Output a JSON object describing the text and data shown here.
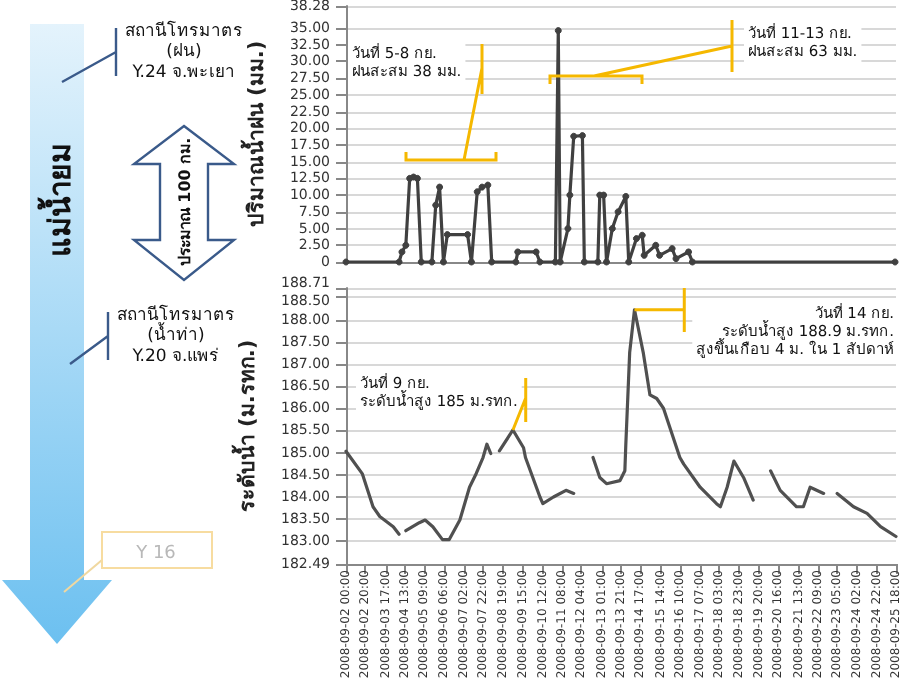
{
  "chart_data": [
    {
      "type": "other",
      "annotations": [
        "แม่น้ำยม",
        "สถานีโทรมาตร\n(ฝน)\nY.24 จ.พะเยา",
        "ประมาณ 100 กม.",
        "สถานีโทรมาตร\n(น้ำท่า)\nY.20 จ.แพร่",
        "Y 16"
      ]
    },
    {
      "type": "line",
      "ylabel": "ปริมาณน้ำฝน (มม.)",
      "tick_labels": "y",
      "grid": "y",
      "marker": "circle",
      "xlim": [
        "2008-09-02T00:00",
        "2008-09-25T18:00"
      ],
      "ylim": [
        0,
        38.28
      ],
      "yticks": [
        0,
        {
          "value": 2.5,
          "label": "2.50"
        },
        {
          "value": 5,
          "label": "5.00"
        },
        {
          "value": 7.5,
          "label": "7.50"
        },
        {
          "value": 10,
          "label": "10.00"
        },
        {
          "value": 12.5,
          "label": "12.50"
        },
        {
          "value": 15,
          "label": "15.00"
        },
        {
          "value": 17.5,
          "label": "17.50"
        },
        {
          "value": 20,
          "label": "20.00"
        },
        {
          "value": 22.5,
          "label": "22.50"
        },
        {
          "value": 25,
          "label": "25.00"
        },
        {
          "value": 27.5,
          "label": "27.50"
        },
        {
          "value": 30,
          "label": "30.00"
        },
        {
          "value": 32.5,
          "label": "32.50"
        },
        {
          "value": 35,
          "label": "35.00"
        },
        {
          "value": 38.28,
          "label": "38.28"
        }
      ],
      "x": [
        "2008-09-02T00:00",
        "2008-09-04T07:00",
        "2008-09-04T10:00",
        "2008-09-04T14:00",
        "2008-09-04T18:00",
        "2008-09-04T22:00",
        "2008-09-05T02:00",
        "2008-09-05T06:00",
        "2008-09-05T17:00",
        "2008-09-05T21:00",
        "2008-09-06T01:00",
        "2008-09-06T05:00",
        "2008-09-06T09:00",
        "2008-09-07T06:00",
        "2008-09-07T10:00",
        "2008-09-07T16:00",
        "2008-09-07T21:00",
        "2008-09-08T03:00",
        "2008-09-08T07:00",
        "2008-09-09T08:00",
        "2008-09-09T10:00",
        "2008-09-10T05:00",
        "2008-09-10T09:00",
        "2008-09-11T01:00",
        "2008-09-11T04:00",
        "2008-09-11T06:00",
        "2008-09-11T14:00",
        "2008-09-11T16:00",
        "2008-09-11T20:00",
        "2008-09-12T05:00",
        "2008-09-12T07:00",
        "2008-09-12T21:00",
        "2008-09-12T23:00",
        "2008-09-13T03:00",
        "2008-09-13T06:00",
        "2008-09-13T12:00",
        "2008-09-13T18:00",
        "2008-09-14T02:00",
        "2008-09-14T05:00",
        "2008-09-14T13:00",
        "2008-09-14T19:00",
        "2008-09-14T21:00",
        "2008-09-15T09:00",
        "2008-09-15T13:00",
        "2008-09-16T02:00",
        "2008-09-16T06:00",
        "2008-09-16T19:00",
        "2008-09-16T23:00",
        "2008-09-25T17:00"
      ],
      "series": [
        {
          "color": "#404040",
          "values": [
            0,
            0,
            1.5,
            2.5,
            12.5,
            12.7,
            12.5,
            0,
            0,
            8.5,
            11.2,
            0,
            4.1,
            4.1,
            0,
            10.5,
            11.2,
            11.5,
            0,
            0,
            1.5,
            1.5,
            0,
            0,
            34.6,
            0,
            5,
            10,
            18.8,
            18.9,
            0,
            0,
            10,
            10,
            0,
            5,
            7.5,
            9.8,
            0,
            3.5,
            4,
            1,
            2.5,
            1,
            2,
            0.5,
            1.5,
            0,
            0
          ]
        }
      ],
      "annotations": [
        "วันที่ 5-8 กย.\nฝนสะสม 38 มม.",
        "วันที่ 11-13 กย.\nฝนสะสม 63 มม."
      ]
    },
    {
      "type": "line",
      "ylabel": "ระดับน้ำ (ม.รทก.)",
      "grid": "y",
      "marker": "none",
      "xlim": [
        "2008-09-02T00:00",
        "2008-09-25T18:00"
      ],
      "xticks": [
        {
          "value": "2008-09-02T00:00",
          "label": "2008-09-02 00:00"
        },
        {
          "value": "2008-09-02T20:00",
          "label": "2008-09-02 20:00"
        },
        {
          "value": "2008-09-03T17:00",
          "label": "2008-09-03 17:00"
        },
        {
          "value": "2008-09-04T13:00",
          "label": "2008-09-04 13:00"
        },
        {
          "value": "2008-09-05T09:00",
          "label": "2008-09-05 09:00"
        },
        {
          "value": "2008-09-06T06:00",
          "label": "2008-09-06 06:00"
        },
        {
          "value": "2008-09-07T02:00",
          "label": "2008-09-07 02:00"
        },
        {
          "value": "2008-09-07T22:00",
          "label": "2008-09-07 22:00"
        },
        {
          "value": "2008-09-08T19:00",
          "label": "2008-09-08 19:00"
        },
        {
          "value": "2008-09-09T15:00",
          "label": "2008-09-09 15:00"
        },
        {
          "value": "2008-09-10T12:00",
          "label": "2008-09-10 12:00"
        },
        {
          "value": "2008-09-11T08:00",
          "label": "2008-09-11 08:00"
        },
        {
          "value": "2008-09-12T04:00",
          "label": "2008-09-12 04:00"
        },
        {
          "value": "2008-09-13T01:00",
          "label": "2008-09-13 01:00"
        },
        {
          "value": "2008-09-13T21:00",
          "label": "2008-09-13 21:00"
        },
        {
          "value": "2008-09-14T17:00",
          "label": "2008-09-14 17:00"
        },
        {
          "value": "2008-09-15T14:00",
          "label": "2008-09-15 14:00"
        },
        {
          "value": "2008-09-16T10:00",
          "label": "2008-09-16 10:00"
        },
        {
          "value": "2008-09-17T07:00",
          "label": "2008-09-17 07:00"
        },
        {
          "value": "2008-09-18T03:00",
          "label": "2008-09-18 03:00"
        },
        {
          "value": "2008-09-18T23:00",
          "label": "2008-09-18 23:00"
        },
        {
          "value": "2008-09-19T20:00",
          "label": "2008-09-19 20:00"
        },
        {
          "value": "2008-09-20T16:00",
          "label": "2008-09-20 16:00"
        },
        {
          "value": "2008-09-21T13:00",
          "label": "2008-09-21 13:00"
        },
        {
          "value": "2008-09-22T09:00",
          "label": "2008-09-22 09:00"
        },
        {
          "value": "2008-09-23T05:00",
          "label": "2008-09-23 05:00"
        },
        {
          "value": "2008-09-24T02:00",
          "label": "2008-09-24 02:00"
        },
        {
          "value": "2008-09-24T22:00",
          "label": "2008-09-24 22:00"
        },
        {
          "value": "2008-09-25T18:00",
          "label": "2008-09-25 18:00"
        }
      ],
      "ylim": [
        182.49,
        188.71
      ],
      "yticks": [
        {
          "value": 182.49,
          "label": "182.49"
        },
        {
          "value": 183,
          "label": "183.00"
        },
        {
          "value": 183.5,
          "label": "183.50"
        },
        {
          "value": 184,
          "label": "184.00"
        },
        {
          "value": 184.5,
          "label": "184.50"
        },
        {
          "value": 185,
          "label": "185.00"
        },
        {
          "value": 185.5,
          "label": "185.50"
        },
        {
          "value": 186,
          "label": "186.00"
        },
        {
          "value": 186.5,
          "label": "186.50"
        },
        {
          "value": 187,
          "label": "187.00"
        },
        {
          "value": 187.5,
          "label": "187.50"
        },
        {
          "value": 188,
          "label": "188.00"
        },
        {
          "value": 188.5,
          "label": "188.50"
        },
        {
          "value": 188.71,
          "label": "188.71"
        }
      ],
      "x": [
        "2008-09-02T00:00",
        "2008-09-02T17:00",
        "2008-09-03T04:00",
        "2008-09-03T11:00",
        "2008-09-04T01:00",
        "2008-09-04T07:00",
        "2008-09-04T10:00",
        "2008-09-04T14:00",
        "2008-09-05T04:00",
        "2008-09-05T10:00",
        "2008-09-05T18:00",
        "2008-09-06T04:00",
        "2008-09-06T11:00",
        "2008-09-06T22:00",
        "2008-09-07T08:00",
        "2008-09-07T15:00",
        "2008-09-07T22:00",
        "2008-09-08T02:00",
        "2008-09-08T06:00",
        "2008-09-08T10:00",
        "2008-09-08T15:00",
        "2008-09-09T05:00",
        "2008-09-09T16:00",
        "2008-09-09T18:00",
        "2008-09-10T09:00",
        "2008-09-10T12:00",
        "2008-09-10T23:00",
        "2008-09-11T12:00",
        "2008-09-11T20:00",
        "2008-09-12T06:00",
        "2008-09-12T16:00",
        "2008-09-12T23:00",
        "2008-09-13T06:00",
        "2008-09-13T20:00",
        "2008-09-14T01:00",
        "2008-09-14T02:00",
        "2008-09-14T06:00",
        "2008-09-14T11:00",
        "2008-09-14T20:00",
        "2008-09-15T03:00",
        "2008-09-15T10:00",
        "2008-09-15T17:00",
        "2008-09-16T10:00",
        "2008-09-16T14:00",
        "2008-09-17T07:00",
        "2008-09-18T00:00",
        "2008-09-18T04:00",
        "2008-09-18T11:00",
        "2008-09-18T18:00",
        "2008-09-19T04:00",
        "2008-09-19T14:00",
        "2008-09-19T23:00",
        "2008-09-20T08:00",
        "2008-09-20T18:00",
        "2008-09-21T11:00",
        "2008-09-21T18:00",
        "2008-09-22T01:00",
        "2008-09-22T15:00",
        "2008-09-22T22:00",
        "2008-09-23T05:00",
        "2008-09-23T22:00",
        "2008-09-24T12:00",
        "2008-09-25T02:00",
        "2008-09-25T18:00"
      ],
      "series": [
        {
          "color": "#505050",
          "values": [
            185.03,
            184.52,
            183.78,
            183.56,
            183.33,
            183.16,
            null,
            183.24,
            183.42,
            183.48,
            183.33,
            183.04,
            183.04,
            183.48,
            184.22,
            184.53,
            184.89,
            185.19,
            184.98,
            null,
            185.04,
            185.51,
            185.11,
            184.89,
            184.0,
            183.85,
            184.0,
            184.15,
            184.08,
            null,
            184.89,
            184.44,
            184.3,
            184.37,
            184.59,
            185.19,
            187.26,
            188.22,
            187.26,
            186.3,
            186.22,
            186.0,
            184.89,
            184.74,
            184.22,
            183.85,
            183.78,
            184.22,
            184.81,
            184.44,
            183.93,
            null,
            184.59,
            184.15,
            183.78,
            183.78,
            184.22,
            184.08,
            null,
            184.08,
            183.78,
            183.63,
            183.33,
            183.11
          ]
        }
      ],
      "annotations": [
        {
          "text": "วันที่ 9 กย.\nระดับน้ำสูง 185 ม.รทก.",
          "x": "2008-09-09T05:00",
          "y": 185.51
        },
        {
          "text": "วันที่ 14 กย.\nระดับน้ำสูง 188.9 ม.รทก.\nสูงขึ้นเกือบ 4 ม. ใน 1 สัปดาห์",
          "x": "2008-09-14T11:00",
          "y": 188.22
        }
      ]
    }
  ]
}
